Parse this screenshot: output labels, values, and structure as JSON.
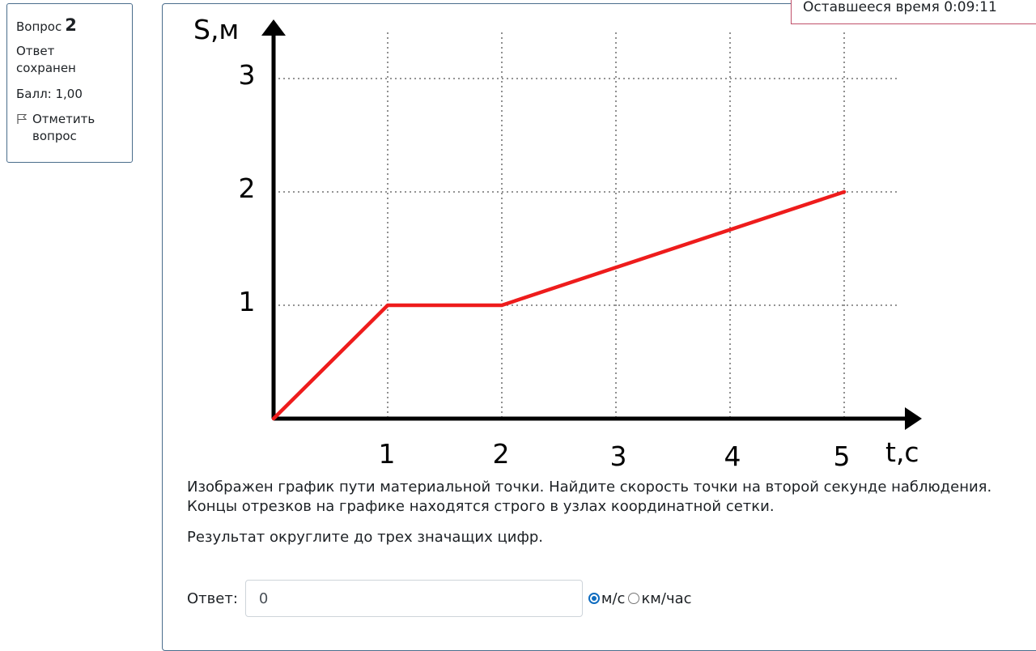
{
  "question_info": {
    "label": "Вопрос",
    "number": "2",
    "state": "Ответ сохранен",
    "grade": "Балл: 1,00",
    "flag_label": "Отметить вопрос"
  },
  "timer": {
    "text": "Оставшееся время 0:09:11"
  },
  "chart_data": {
    "type": "line",
    "xlabel": "t,c",
    "ylabel": "S,м",
    "xlim": [
      0,
      5
    ],
    "ylim": [
      0,
      3
    ],
    "x_ticks": [
      "1",
      "2",
      "3",
      "4",
      "5"
    ],
    "y_ticks": [
      "1",
      "2",
      "3"
    ],
    "grid": true,
    "series": [
      {
        "color": "#ee1c1c",
        "x": [
          0,
          1,
          2,
          5
        ],
        "y": [
          0,
          1,
          1,
          2
        ]
      }
    ]
  },
  "question": {
    "text_1": "Изображен график пути  материальной точки. Найдите скорость точки на второй секунде наблюдения.  Концы отрезков на графике находятся строго в узлах координатной сетки.",
    "text_2": "Результат округлите до трех значащих цифр."
  },
  "answer": {
    "label": "Ответ:",
    "value": "0",
    "units": [
      {
        "label": "м/с",
        "checked": true
      },
      {
        "label": "км/час",
        "checked": false
      }
    ]
  }
}
